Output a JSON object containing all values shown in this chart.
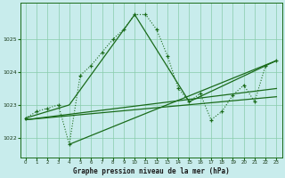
{
  "xlabel": "Graphe pression niveau de la mer (hPa)",
  "background_color": "#c8ecec",
  "grid_color": "#88ccaa",
  "line_color": "#1a6b1a",
  "ylim": [
    1021.4,
    1026.1
  ],
  "xlim": [
    -0.5,
    23.5
  ],
  "yticks": [
    1022,
    1023,
    1024,
    1025
  ],
  "xticks": [
    0,
    1,
    2,
    3,
    4,
    5,
    6,
    7,
    8,
    9,
    10,
    11,
    12,
    13,
    14,
    15,
    16,
    17,
    18,
    19,
    20,
    21,
    22,
    23
  ],
  "series1_x": [
    0,
    1,
    2,
    3,
    4,
    5,
    6,
    7,
    8,
    9,
    10,
    11,
    12,
    13,
    14,
    15,
    16,
    17,
    18,
    19,
    20,
    21,
    22,
    23
  ],
  "series1_y": [
    1022.6,
    1022.8,
    1022.9,
    1023.0,
    1021.8,
    1023.9,
    1024.2,
    1024.6,
    1025.0,
    1025.3,
    1025.75,
    1025.75,
    1025.3,
    1024.5,
    1023.5,
    1023.1,
    1023.35,
    1022.55,
    1022.8,
    1023.3,
    1023.6,
    1023.1,
    1024.2,
    1024.35
  ],
  "line2_x": [
    0,
    4,
    10,
    15,
    23
  ],
  "line2_y": [
    1022.6,
    1023.0,
    1025.75,
    1023.1,
    1024.35
  ],
  "line3_x": [
    0,
    23
  ],
  "line3_y": [
    1022.55,
    1023.5
  ],
  "line4_x": [
    0,
    23
  ],
  "line4_y": [
    1022.55,
    1023.25
  ],
  "line5_x": [
    4,
    23
  ],
  "line5_y": [
    1021.8,
    1024.35
  ]
}
